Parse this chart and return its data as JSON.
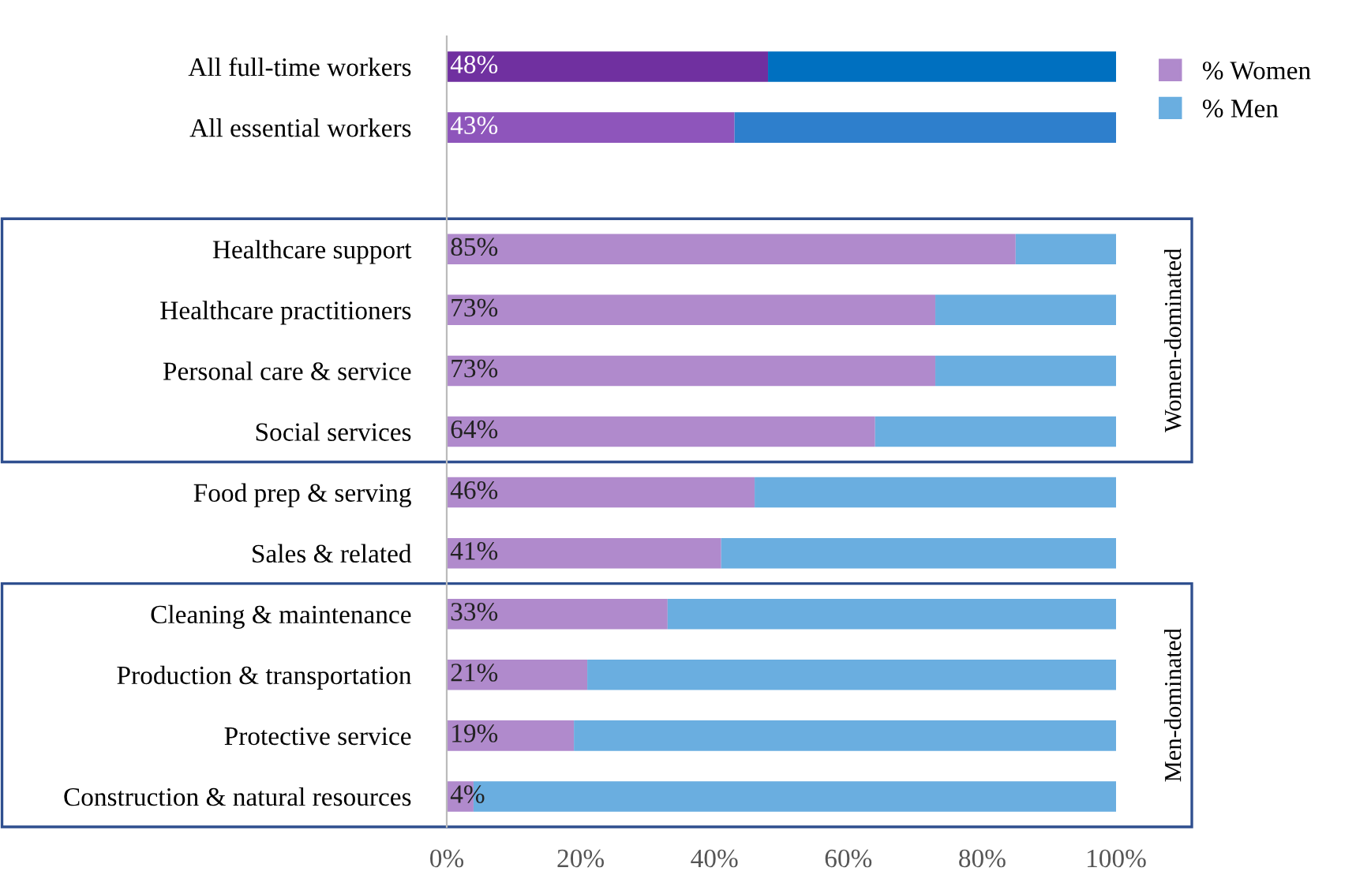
{
  "chart_data": {
    "type": "bar",
    "orientation": "horizontal",
    "stacked": true,
    "categories": [
      "All full-time workers",
      "All essential workers",
      null,
      "Healthcare support",
      "Healthcare practitioners",
      "Personal care & service",
      "Social services",
      "Food prep & serving",
      "Sales & related",
      "Cleaning & maintenance",
      "Production & transportation",
      "Protective service",
      "Construction & natural resources"
    ],
    "series": [
      {
        "name": "% Women",
        "color": "#b08acc",
        "colors": [
          "#7030a0",
          "#8e55bb",
          null,
          "#b08acc",
          "#b08acc",
          "#b08acc",
          "#b08acc",
          "#b08acc",
          "#b08acc",
          "#b08acc",
          "#b08acc",
          "#b08acc",
          "#b08acc"
        ],
        "values": [
          48,
          43,
          null,
          85,
          73,
          73,
          64,
          46,
          41,
          33,
          21,
          19,
          4
        ],
        "value_labels": [
          "48%",
          "43%",
          null,
          "85%",
          "73%",
          "73%",
          "64%",
          "46%",
          "41%",
          "33%",
          "21%",
          "19%",
          "4%"
        ]
      },
      {
        "name": "% Men",
        "color": "#6aaee0",
        "colors": [
          "#0070c0",
          "#2e7fcc",
          null,
          "#6aaee0",
          "#6aaee0",
          "#6aaee0",
          "#6aaee0",
          "#6aaee0",
          "#6aaee0",
          "#6aaee0",
          "#6aaee0",
          "#6aaee0",
          "#6aaee0"
        ],
        "values": [
          52,
          57,
          null,
          15,
          27,
          27,
          36,
          54,
          59,
          67,
          79,
          81,
          96
        ]
      }
    ],
    "xlim": [
      0,
      100
    ],
    "xticks": [
      {
        "value": 0,
        "label": "0%"
      },
      {
        "value": 20,
        "label": "20%"
      },
      {
        "value": 40,
        "label": "40%"
      },
      {
        "value": 60,
        "label": "60%"
      },
      {
        "value": 80,
        "label": "80%"
      },
      {
        "value": 100,
        "label": "100%"
      }
    ],
    "annotations": [
      "Women-dominated",
      "Men-dominated"
    ],
    "legend": "top right",
    "grid": false
  }
}
